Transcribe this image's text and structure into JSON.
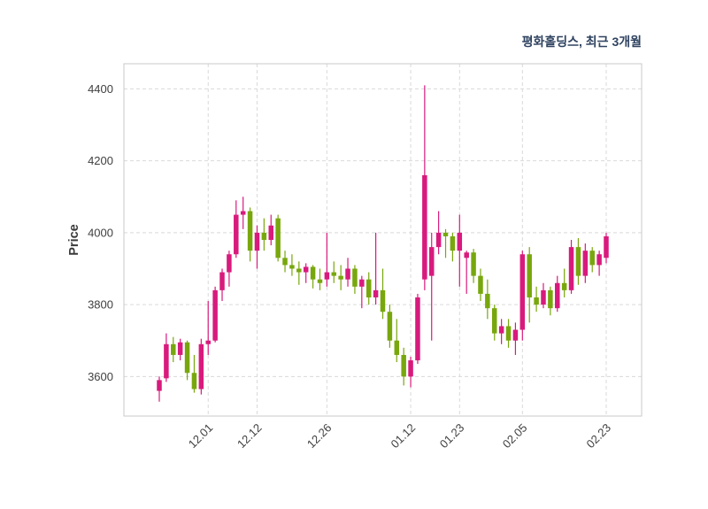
{
  "header": {
    "title": "평화홀딩스, 최근 3개월"
  },
  "colors": {
    "up": "#d81a7d",
    "down": "#78a70d",
    "grid": "#d9d9d9",
    "border": "#c9c9c9",
    "tick_text": "#404040",
    "title_text": "#2f4360",
    "ylabel_text": "#3a3a3a",
    "background": "#ffffff"
  },
  "chart_data": {
    "type": "candlestick",
    "title": "평화홀딩스, 최근 3개월",
    "ylabel": "Price",
    "xlabel": "",
    "ylim": [
      3490,
      4470
    ],
    "yticks": [
      3600,
      3800,
      4000,
      4200,
      4400
    ],
    "xtick_labels": [
      "12.01",
      "12.12",
      "12.26",
      "01.12",
      "01.23",
      "02.05",
      "02.23"
    ],
    "grid": true,
    "legend_position": "none",
    "up_rule": "close>=open is pink (up), close<open is green (down)",
    "x": [
      "11.22",
      "11.23",
      "11.24",
      "11.25",
      "11.28",
      "11.29",
      "11.30",
      "12.01",
      "12.02",
      "12.05",
      "12.06",
      "12.07",
      "12.08",
      "12.09",
      "12.12",
      "12.13",
      "12.14",
      "12.15",
      "12.16",
      "12.19",
      "12.20",
      "12.21",
      "12.22",
      "12.23",
      "12.26",
      "12.27",
      "12.28",
      "12.29",
      "01.02",
      "01.03",
      "01.04",
      "01.05",
      "01.06",
      "01.09",
      "01.10",
      "01.11",
      "01.12",
      "01.13",
      "01.16",
      "01.17",
      "01.18",
      "01.19",
      "01.20",
      "01.23",
      "01.25",
      "01.26",
      "01.27",
      "01.30",
      "01.31",
      "02.01",
      "02.02",
      "02.03",
      "02.05",
      "02.06",
      "02.07",
      "02.08",
      "02.09",
      "02.12",
      "02.13",
      "02.14",
      "02.15",
      "02.16",
      "02.19",
      "02.20",
      "02.23"
    ],
    "ohlc": [
      [
        3560,
        3600,
        3530,
        3590
      ],
      [
        3595,
        3720,
        3585,
        3690
      ],
      [
        3690,
        3710,
        3640,
        3660
      ],
      [
        3660,
        3705,
        3645,
        3695
      ],
      [
        3695,
        3700,
        3590,
        3610
      ],
      [
        3610,
        3660,
        3555,
        3565
      ],
      [
        3565,
        3705,
        3550,
        3690
      ],
      [
        3690,
        3810,
        3660,
        3700
      ],
      [
        3700,
        3850,
        3695,
        3840
      ],
      [
        3840,
        3900,
        3810,
        3890
      ],
      [
        3890,
        3950,
        3850,
        3940
      ],
      [
        3940,
        4090,
        3930,
        4050
      ],
      [
        4050,
        4100,
        4010,
        4060
      ],
      [
        4060,
        4070,
        3920,
        3950
      ],
      [
        3950,
        4020,
        3900,
        4000
      ],
      [
        4000,
        4040,
        3950,
        3980
      ],
      [
        3980,
        4050,
        3965,
        4020
      ],
      [
        4040,
        4050,
        3920,
        3930
      ],
      [
        3930,
        3950,
        3890,
        3910
      ],
      [
        3910,
        3940,
        3880,
        3900
      ],
      [
        3900,
        3920,
        3855,
        3890
      ],
      [
        3890,
        3915,
        3860,
        3905
      ],
      [
        3905,
        3910,
        3845,
        3870
      ],
      [
        3870,
        3900,
        3840,
        3860
      ],
      [
        3870,
        4000,
        3850,
        3890
      ],
      [
        3890,
        3920,
        3860,
        3880
      ],
      [
        3880,
        3910,
        3840,
        3870
      ],
      [
        3870,
        3930,
        3850,
        3900
      ],
      [
        3900,
        3910,
        3830,
        3850
      ],
      [
        3850,
        3880,
        3790,
        3870
      ],
      [
        3870,
        3890,
        3800,
        3820
      ],
      [
        3820,
        4000,
        3800,
        3840
      ],
      [
        3840,
        3900,
        3760,
        3780
      ],
      [
        3780,
        3800,
        3680,
        3700
      ],
      [
        3700,
        3760,
        3640,
        3660
      ],
      [
        3660,
        3680,
        3575,
        3600
      ],
      [
        3600,
        3655,
        3570,
        3645
      ],
      [
        3645,
        3830,
        3635,
        3820
      ],
      [
        3870,
        4410,
        3840,
        4160
      ],
      [
        3880,
        4000,
        3700,
        3960
      ],
      [
        3960,
        4060,
        3940,
        4000
      ],
      [
        4000,
        4010,
        3930,
        3990
      ],
      [
        3990,
        4000,
        3920,
        3950
      ],
      [
        3950,
        4050,
        3850,
        4000
      ],
      [
        3930,
        3950,
        3830,
        3945
      ],
      [
        3945,
        3955,
        3860,
        3880
      ],
      [
        3880,
        3900,
        3810,
        3830
      ],
      [
        3830,
        3870,
        3760,
        3790
      ],
      [
        3790,
        3800,
        3700,
        3720
      ],
      [
        3720,
        3760,
        3690,
        3740
      ],
      [
        3740,
        3760,
        3680,
        3700
      ],
      [
        3700,
        3750,
        3660,
        3730
      ],
      [
        3730,
        3950,
        3700,
        3940
      ],
      [
        3940,
        3960,
        3750,
        3820
      ],
      [
        3820,
        3850,
        3780,
        3800
      ],
      [
        3800,
        3860,
        3790,
        3840
      ],
      [
        3840,
        3850,
        3770,
        3790
      ],
      [
        3790,
        3880,
        3780,
        3860
      ],
      [
        3860,
        3900,
        3820,
        3840
      ],
      [
        3840,
        3980,
        3830,
        3960
      ],
      [
        3960,
        3985,
        3855,
        3880
      ],
      [
        3880,
        3970,
        3860,
        3950
      ],
      [
        3950,
        3960,
        3890,
        3910
      ],
      [
        3910,
        3950,
        3880,
        3940
      ],
      [
        3930,
        4000,
        3915,
        3990
      ]
    ]
  }
}
